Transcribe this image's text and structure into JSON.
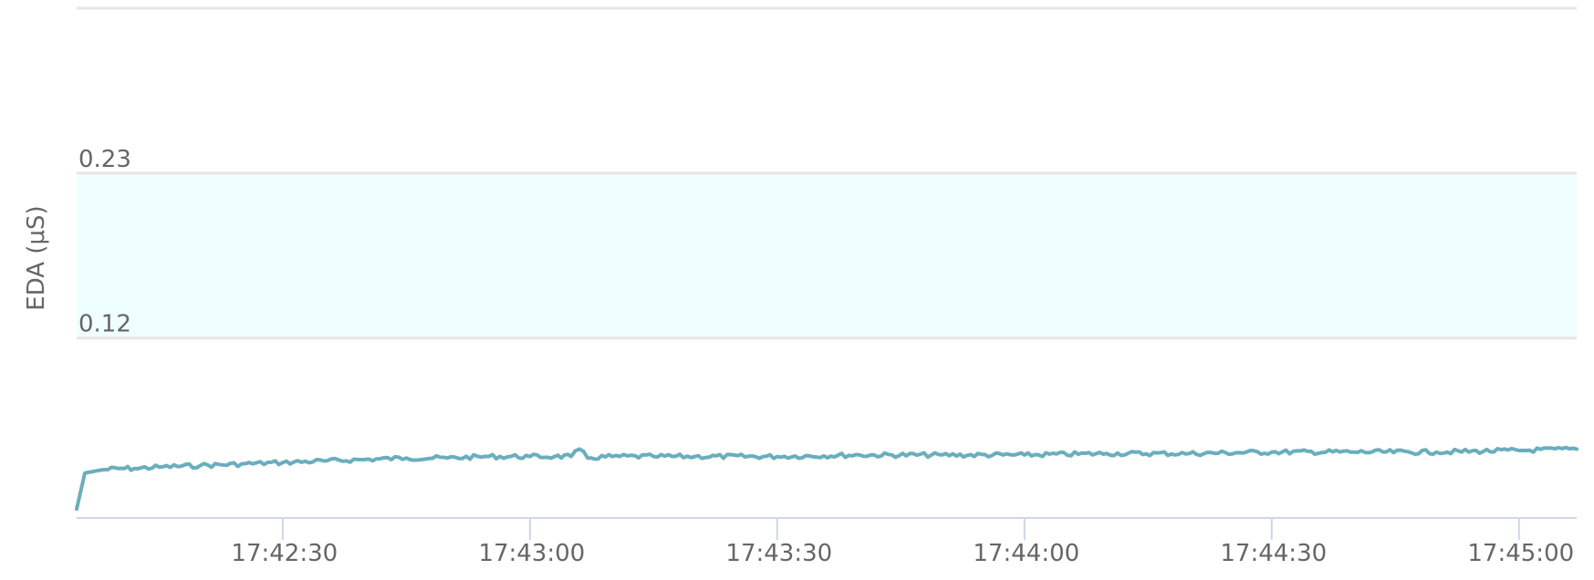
{
  "chart_data": {
    "type": "line",
    "title": "",
    "xlabel": "",
    "ylabel": "EDA (μS)",
    "x_range": [
      "17:42:05",
      "17:45:07"
    ],
    "x_ticks": [
      "17:42:30",
      "17:43:00",
      "17:43:30",
      "17:44:00",
      "17:44:30",
      "17:45:00"
    ],
    "y_ticks": [
      "0.12",
      "0.23"
    ],
    "ylim": [
      0.0,
      0.34
    ],
    "grid": true,
    "legend": "none",
    "band": {
      "from": 0.12,
      "to": 0.23,
      "color": "#effefe"
    },
    "colors": {
      "series": "#6aaebe",
      "grid": "#e6e6e6",
      "axis": "#ccd6eb",
      "text": "#666666"
    },
    "series": [
      {
        "x": [
          "17:42:05",
          "17:42:06",
          "17:42:08",
          "17:42:10",
          "17:42:12",
          "17:42:15",
          "17:42:20",
          "17:42:25",
          "17:42:30",
          "17:42:35",
          "17:42:40",
          "17:42:45",
          "17:42:50",
          "17:42:55",
          "17:43:00",
          "17:43:03",
          "17:43:05",
          "17:43:06",
          "17:43:07",
          "17:43:10",
          "17:43:15",
          "17:43:20",
          "17:43:30",
          "17:43:40",
          "17:43:50",
          "17:44:00",
          "17:44:10",
          "17:44:20",
          "17:44:30",
          "17:44:40",
          "17:44:50",
          "17:45:00",
          "17:45:07"
        ],
        "values": [
          0.006,
          0.03,
          0.032,
          0.033,
          0.033,
          0.034,
          0.035,
          0.036,
          0.037,
          0.038,
          0.039,
          0.04,
          0.04,
          0.041,
          0.041,
          0.041,
          0.041,
          0.046,
          0.04,
          0.041,
          0.041,
          0.041,
          0.041,
          0.042,
          0.042,
          0.042,
          0.043,
          0.043,
          0.044,
          0.044,
          0.044,
          0.045,
          0.046
        ]
      }
    ]
  }
}
